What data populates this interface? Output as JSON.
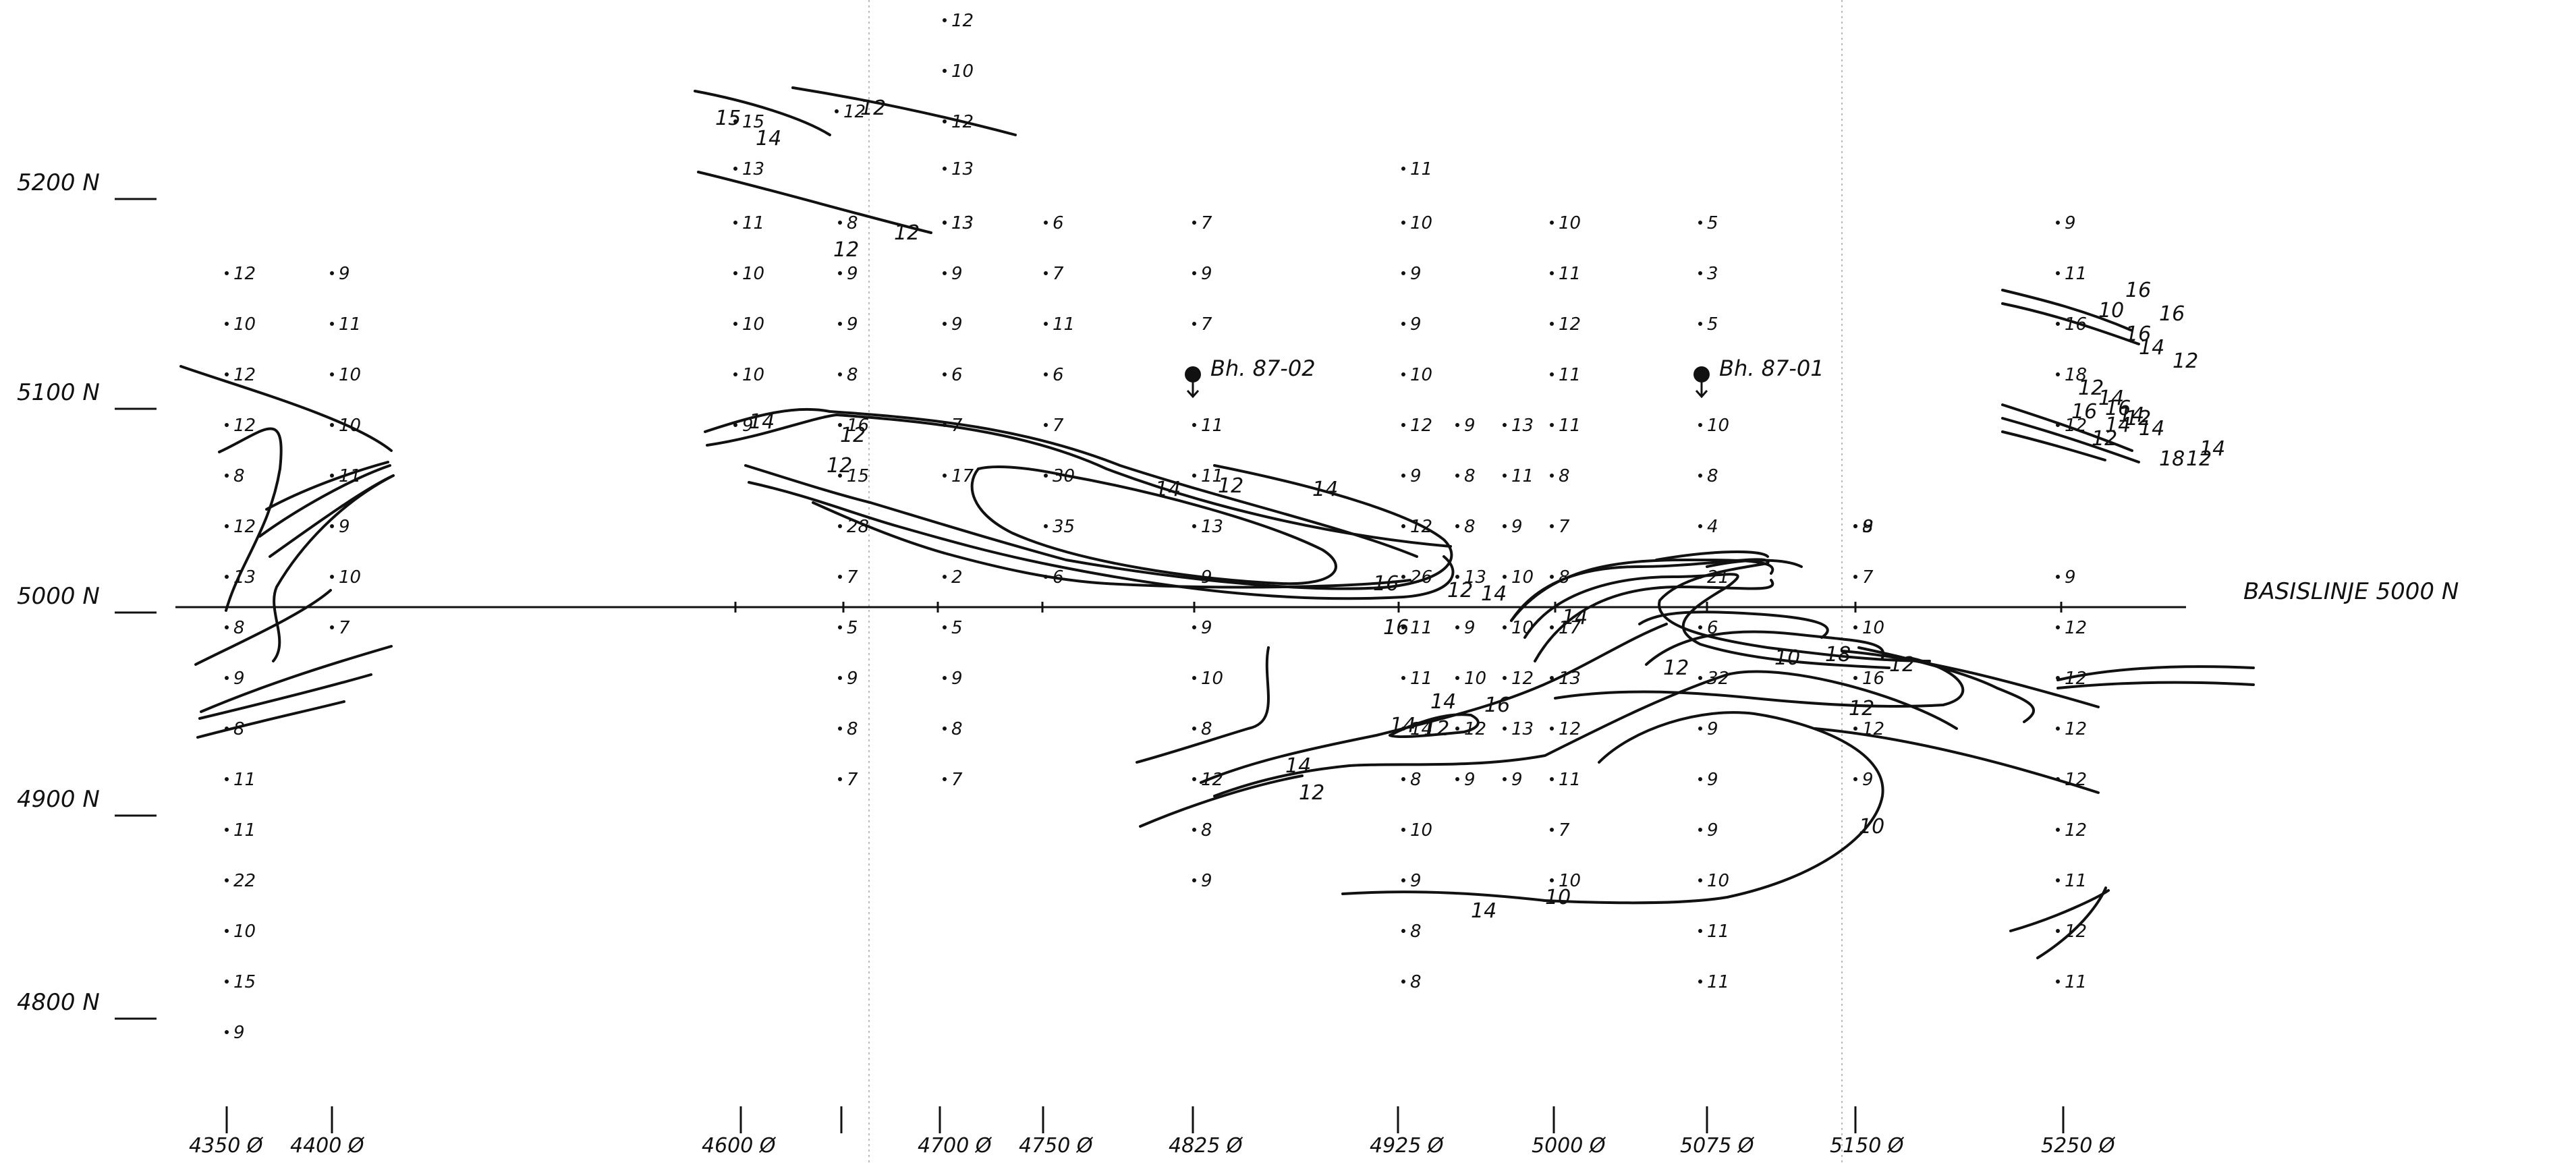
{
  "baseline_label": "BASISLINJE    5000 N",
  "north_labels": [
    "5200 N",
    "5100 N",
    "5000 N",
    "4900 N",
    "4800 N"
  ],
  "east_labels": [
    "4350 Ø",
    "4400 Ø",
    "4600 Ø",
    "4700 Ø",
    "4750 Ø",
    "4825 Ø",
    "4925 Ø",
    "5000 Ø",
    "5075 Ø",
    "5150 Ø",
    "5250 Ø"
  ],
  "boreholes": [
    "Bh. 87-02",
    "Bh. 87-01"
  ],
  "contour_labels": [
    "12",
    "14",
    "15",
    "12",
    "12",
    "14",
    "12",
    "12",
    "14",
    "12",
    "14",
    "16",
    "12",
    "14",
    "16",
    "14",
    "12",
    "10",
    "18",
    "12",
    "14",
    "12",
    "14",
    "16",
    "14",
    "12",
    "10",
    "14",
    "12",
    "10",
    "10",
    "16",
    "14",
    "12",
    "14",
    "18",
    "12",
    "14",
    "16",
    "16",
    "14",
    "12",
    "16",
    "12",
    "14",
    "16",
    "12",
    "14"
  ],
  "readings": [
    "12",
    "10",
    "12",
    "13",
    "13",
    "12",
    "11",
    "15",
    "13",
    "11",
    "8",
    "13",
    "6",
    "7",
    "10",
    "10",
    "5",
    "9",
    "10",
    "9",
    "9",
    "7",
    "9",
    "9",
    "11",
    "3",
    "11",
    "10",
    "9",
    "9",
    "11",
    "7",
    "9",
    "12",
    "5",
    "16",
    "10",
    "8",
    "6",
    "6",
    "10",
    "11",
    "18",
    "9",
    "12",
    "9",
    "13",
    "11",
    "12",
    "11",
    "10",
    "7",
    "7",
    "16",
    "15",
    "17",
    "30",
    "11",
    "9",
    "8",
    "11",
    "8",
    "8",
    "9",
    "12",
    "28",
    "35",
    "13",
    "8",
    "9",
    "7",
    "4",
    "8",
    "7",
    "2",
    "6",
    "9",
    "26",
    "13",
    "10",
    "8",
    "21",
    "7",
    "9",
    "5",
    "5",
    "9",
    "11",
    "9",
    "10",
    "17",
    "6",
    "10",
    "12",
    "9",
    "9",
    "10",
    "11",
    "10",
    "12",
    "13",
    "32",
    "16",
    "12",
    "8",
    "8",
    "8",
    "14",
    "12",
    "13",
    "12",
    "9",
    "12",
    "12",
    "7",
    "7",
    "12",
    "8",
    "9",
    "9",
    "11",
    "9",
    "9",
    "12",
    "8",
    "10",
    "7",
    "9",
    "12",
    "9",
    "9",
    "10",
    "10",
    "11",
    "8",
    "11",
    "12",
    "8",
    "11",
    "11",
    "12",
    "9",
    "10",
    "11",
    "12",
    "10",
    "12",
    "10",
    "8",
    "11",
    "12",
    "9",
    "13",
    "10",
    "8",
    "7",
    "9",
    "8",
    "11",
    "11",
    "22",
    "10",
    "15",
    "9"
  ]
}
